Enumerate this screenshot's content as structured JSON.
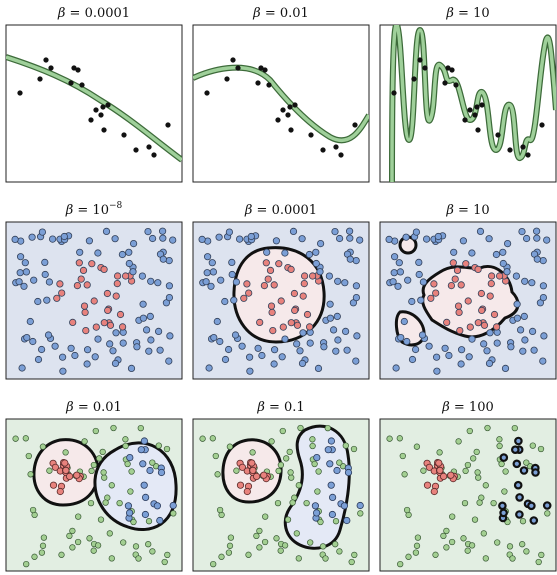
{
  "titles": {
    "r1c1": {
      "sym": "β",
      "eq": " = ",
      "val": "0.0001"
    },
    "r1c2": {
      "sym": "β",
      "eq": " = ",
      "val": "0.01"
    },
    "r1c3": {
      "sym": "β",
      "eq": " = ",
      "val": "10"
    },
    "r2c1": {
      "sym": "β",
      "eq": " = ",
      "base": "10",
      "exp": "−8"
    },
    "r2c2": {
      "sym": "β",
      "eq": " = ",
      "val": "0.0001"
    },
    "r2c3": {
      "sym": "β",
      "eq": " = ",
      "val": "10"
    },
    "r3c1": {
      "sym": "β",
      "eq": " = ",
      "val": "0.01"
    },
    "r3c2": {
      "sym": "β",
      "eq": " = ",
      "val": "0.1"
    },
    "r3c3": {
      "sym": "β",
      "eq": " = ",
      "val": "100"
    }
  },
  "colors": {
    "curve_fill": "#9fd09a",
    "curve_edge": "#3d6b3a",
    "point_dark": "#111111",
    "bg_blue": "#dde3ef",
    "bg_green": "#e2eee2",
    "class_red": "#e8827d",
    "class_blue": "#7b9fd6",
    "class_green": "#a3cf92",
    "region_red": "#f6e9ea",
    "region_blue": "#e4e9f6"
  }
}
